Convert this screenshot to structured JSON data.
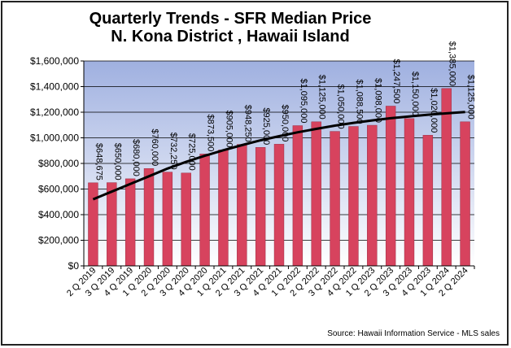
{
  "chart_data": {
    "type": "bar",
    "title": "Quarterly Trends - SFR Median Price",
    "subtitle": "N. Kona District , Hawaii Island",
    "source": "Source:  Hawaii Information Service - MLS sales",
    "categories": [
      "2 Q 2019",
      "3 Q 2019",
      "4 Q 2019",
      "1 Q 2020",
      "2 Q 2020",
      "3 Q 2020",
      "4 Q 2020",
      "1 Q 2021",
      "2 Q 2021",
      "3 Q 2021",
      "4 Q 2021",
      "1 Q 2022",
      "2 Q 2022",
      "3 Q 2022",
      "4 Q 2022",
      "1 Q 2023",
      "2 Q 2023",
      "3 Q 2023",
      "4 Q 2023",
      "1 Q 2024",
      "2 Q 2024"
    ],
    "values": [
      648675,
      650000,
      680000,
      760000,
      732250,
      725000,
      873500,
      905000,
      948250,
      925000,
      950000,
      1095000,
      1125000,
      1050000,
      1088500,
      1098000,
      1247500,
      1150000,
      1020000,
      1385000,
      1125000
    ],
    "data_labels": [
      "$648,675",
      "$650,000",
      "$680,000",
      "$760,000",
      "$732,250",
      "$725,000",
      "$873,500",
      "$905,000",
      "$948,250",
      "$925,000",
      "$950,000",
      "$1,095,000",
      "$1,125,000",
      "$1,050,000",
      "$1,088,500",
      "$1,098,000",
      "$1,247,500",
      "$1,150,000",
      "$1,020,000",
      "$1,385,000",
      "$1,125,000"
    ],
    "trendline": {
      "type": "polynomial",
      "values": [
        520000,
        580000,
        640000,
        700000,
        760000,
        812000,
        860000,
        903000,
        943000,
        980000,
        1013000,
        1043000,
        1070000,
        1095000,
        1117000,
        1136000,
        1153000,
        1167000,
        1180000,
        1191000,
        1201000
      ]
    },
    "ylim": [
      0,
      1600000
    ],
    "yticks": [
      0,
      200000,
      400000,
      600000,
      800000,
      1000000,
      1200000,
      1400000,
      1600000
    ],
    "ytick_labels": [
      "$0",
      "$200,000",
      "$400,000",
      "$600,000",
      "$800,000",
      "$1,000,000",
      "$1,200,000",
      "$1,400,000",
      "$1,600,000"
    ],
    "grid": true,
    "colors": {
      "bar": "#d7435e",
      "bar_edge": "#9b2a40",
      "plot_bg_top": "#9fb0e0",
      "plot_bg_bottom": "#ffffff",
      "trendline": "#000000",
      "frame": "#222222"
    }
  }
}
